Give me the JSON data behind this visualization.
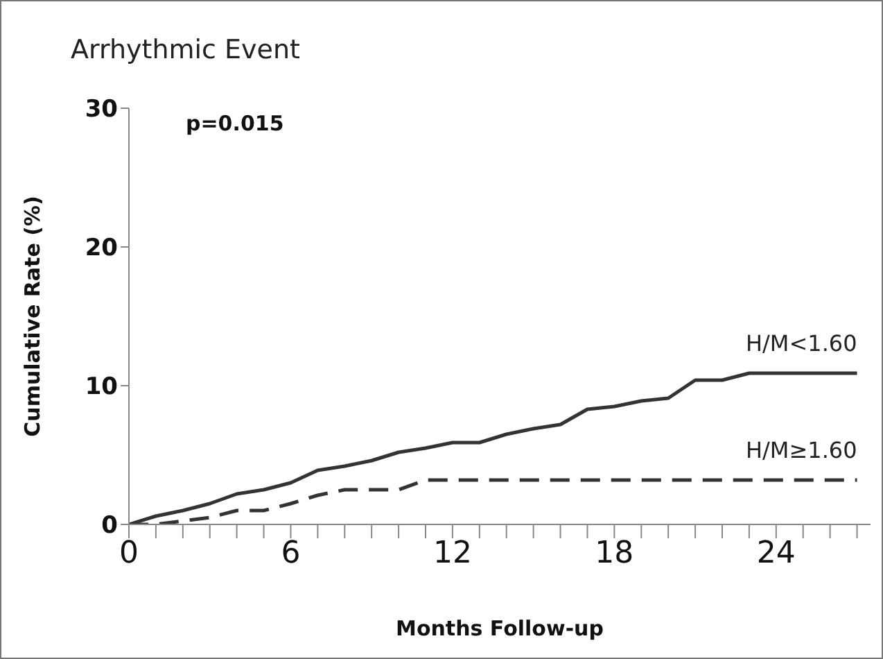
{
  "chart_data": {
    "type": "line",
    "title": "Arrhythmic Event",
    "xlabel": "Months Follow-up",
    "ylabel": "Cumulative Rate (%)",
    "annotations": [
      "p=0.015"
    ],
    "xlim": [
      0,
      27.5
    ],
    "ylim": [
      0,
      30
    ],
    "xticks": [
      0,
      {
        "value": 1,
        "label": null
      },
      {
        "value": 2,
        "label": null
      },
      {
        "value": 3,
        "label": null
      },
      {
        "value": 4,
        "label": null
      },
      {
        "value": 5,
        "label": null
      },
      6,
      {
        "value": 7,
        "label": null
      },
      {
        "value": 8,
        "label": null
      },
      {
        "value": 9,
        "label": null
      },
      {
        "value": 10,
        "label": null
      },
      {
        "value": 11,
        "label": null
      },
      12,
      {
        "value": 13,
        "label": null
      },
      {
        "value": 14,
        "label": null
      },
      {
        "value": 15,
        "label": null
      },
      {
        "value": 16,
        "label": null
      },
      {
        "value": 17,
        "label": null
      },
      18,
      {
        "value": 19,
        "label": null
      },
      {
        "value": 20,
        "label": null
      },
      {
        "value": 21,
        "label": null
      },
      {
        "value": 22,
        "label": null
      },
      {
        "value": 23,
        "label": null
      },
      24,
      {
        "value": 25,
        "label": null
      },
      {
        "value": 26,
        "label": null
      },
      {
        "value": 27,
        "label": null
      }
    ],
    "yticks": [
      0,
      10,
      20,
      30
    ],
    "grid": false,
    "legend": false,
    "marker": "none",
    "series": [
      {
        "name": "H/M<1.60",
        "color": "#333333",
        "line_style": "solid",
        "x": [
          0,
          1,
          2,
          3,
          4,
          5,
          6,
          7,
          8,
          9,
          10,
          11,
          12,
          13,
          14,
          15,
          16,
          17,
          18,
          19,
          20,
          21,
          22,
          23,
          27
        ],
        "values": [
          0,
          0.6,
          1.0,
          1.5,
          2.2,
          2.5,
          3.0,
          3.9,
          4.2,
          4.6,
          5.2,
          5.5,
          5.9,
          5.9,
          6.5,
          6.9,
          7.2,
          8.3,
          8.5,
          8.9,
          9.1,
          10.4,
          10.4,
          10.9,
          10.9
        ]
      },
      {
        "name": "H/M≥1.60",
        "color": "#333333",
        "line_style": "dashed",
        "x": [
          0,
          1,
          3,
          4,
          5,
          6,
          7,
          8,
          10,
          11,
          27
        ],
        "values": [
          0,
          0,
          0.5,
          1.0,
          1.0,
          1.5,
          2.1,
          2.5,
          2.5,
          3.2,
          3.2
        ]
      }
    ]
  }
}
